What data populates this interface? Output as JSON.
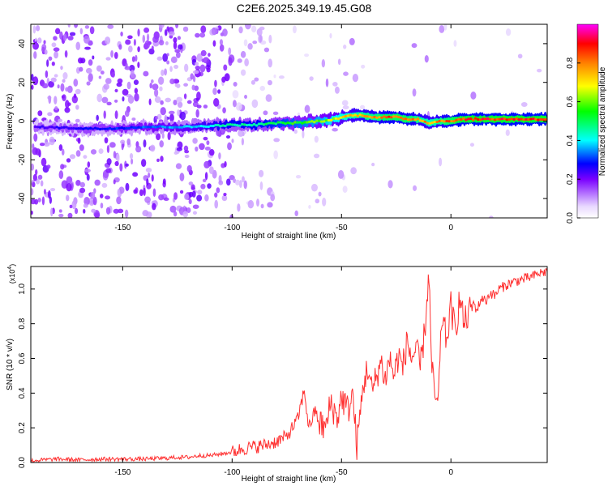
{
  "title": "C2E6.2025.349.19.45.G08",
  "chart_data": [
    {
      "type": "heatmap",
      "title": "C2E6.2025.349.19.45.G08",
      "xlabel": "Height of straight line (km)",
      "ylabel": "Frequency (Hz)",
      "xlim": [
        -192,
        44
      ],
      "ylim": [
        -50,
        50
      ],
      "xticks": [
        -150,
        -100,
        -50,
        0
      ],
      "yticks": [
        -40,
        -20,
        0,
        20,
        40
      ],
      "ridge": {
        "x": [
          -190,
          -160,
          -140,
          -120,
          -100,
          -90,
          -80,
          -70,
          -60,
          -55,
          -50,
          -45,
          -40,
          -35,
          -30,
          -25,
          -20,
          -15,
          -10,
          -5,
          0,
          5,
          10,
          20,
          30,
          44
        ],
        "y": [
          -3,
          -4,
          -3,
          -3,
          -2,
          -2,
          -1,
          -1,
          0,
          0.5,
          2,
          3,
          3,
          2,
          2,
          2,
          1,
          1,
          -1,
          0,
          0,
          1,
          1,
          1,
          1,
          1
        ],
        "amplitude": [
          0.25,
          0.3,
          0.35,
          0.4,
          0.5,
          0.5,
          0.55,
          0.6,
          0.65,
          0.7,
          0.75,
          0.8,
          0.85,
          0.85,
          0.9,
          0.9,
          0.9,
          0.85,
          0.8,
          0.85,
          0.9,
          0.95,
          0.95,
          0.95,
          0.95,
          0.95
        ]
      },
      "colorbar": {
        "label": "Normalized spectral amplitude",
        "range": [
          0,
          1
        ],
        "ticks": [
          0.0,
          0.2,
          0.4,
          0.6,
          0.8
        ],
        "tick_labels": [
          "0.0",
          "0.2",
          "0.4",
          "0.6",
          "0.8"
        ]
      }
    },
    {
      "type": "line",
      "xlabel": "Height of straight line (km)",
      "ylabel": "SNR (10 * v/v)",
      "scale_label": "(x10",
      "scale_exp": "4",
      "scale_close": ")",
      "xlim": [
        -192,
        44
      ],
      "ylim": [
        0,
        1.13
      ],
      "xticks": [
        -150,
        -100,
        -50,
        0
      ],
      "yticks": [
        0.0,
        0.2,
        0.4,
        0.6,
        0.8,
        1.0
      ],
      "ytick_labels": [
        "0.0",
        "0.2",
        "0.4",
        "0.6",
        "0.8",
        "1.0"
      ],
      "series": [
        {
          "name": "SNR",
          "color": "#ff3030",
          "x": [
            -192,
            -180,
            -170,
            -160,
            -150,
            -140,
            -130,
            -125,
            -120,
            -115,
            -110,
            -105,
            -100,
            -95,
            -90,
            -85,
            -80,
            -75,
            -70,
            -67,
            -65,
            -62,
            -60,
            -57,
            -55,
            -52,
            -50,
            -47,
            -45,
            -43,
            -40,
            -38,
            -36,
            -34,
            -32,
            -30,
            -28,
            -26,
            -24,
            -22,
            -20,
            -18,
            -16,
            -14,
            -12,
            -10,
            -9,
            -8,
            -6,
            -4,
            -2,
            0,
            2,
            4,
            6,
            8,
            10,
            12,
            14,
            16,
            18,
            20,
            22,
            25,
            28,
            31,
            34,
            37,
            40,
            44
          ],
          "y": [
            0.01,
            0.02,
            0.015,
            0.02,
            0.02,
            0.02,
            0.025,
            0.03,
            0.03,
            0.04,
            0.04,
            0.05,
            0.06,
            0.08,
            0.09,
            0.1,
            0.12,
            0.15,
            0.25,
            0.42,
            0.2,
            0.3,
            0.22,
            0.2,
            0.35,
            0.25,
            0.38,
            0.3,
            0.4,
            0.1,
            0.45,
            0.55,
            0.4,
            0.5,
            0.58,
            0.48,
            0.6,
            0.5,
            0.62,
            0.55,
            0.7,
            0.6,
            0.65,
            0.55,
            0.75,
            1.1,
            0.6,
            0.45,
            0.3,
            0.85,
            0.7,
            0.9,
            0.75,
            0.95,
            0.8,
            0.85,
            0.92,
            0.88,
            0.95,
            0.93,
            0.98,
            0.96,
            1.0,
            1.02,
            1.04,
            1.05,
            1.06,
            1.07,
            1.09,
            1.1
          ]
        }
      ]
    }
  ]
}
